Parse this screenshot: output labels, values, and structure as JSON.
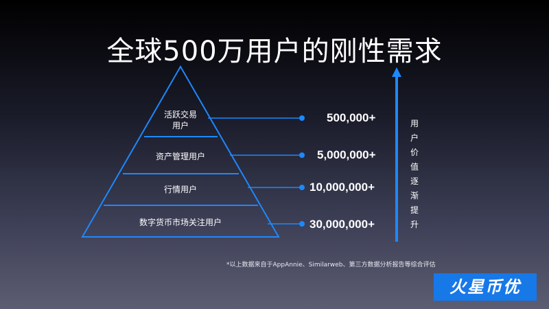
{
  "title": "全球500万用户的刚性需求",
  "pyramid": {
    "layers": [
      {
        "label": "活跃交易\n用户",
        "count": "500,000+"
      },
      {
        "label": "资产管理用户",
        "count": "5,000,000+"
      },
      {
        "label": "行情用户",
        "count": "10,000,000+"
      },
      {
        "label": "数字货币市场关注用户",
        "count": "30,000,000+"
      }
    ]
  },
  "value_axis_label": [
    "用",
    "户",
    "价",
    "值",
    "逐",
    "渐",
    "提",
    "升"
  ],
  "footnote": "*以上数据来自于AppAnnie、Similarweb、第三方数据分析报告等综合评估",
  "logo_text": "火星币优",
  "colors": {
    "accent": "#1e88ff",
    "logo_bg": "#1778e8"
  }
}
